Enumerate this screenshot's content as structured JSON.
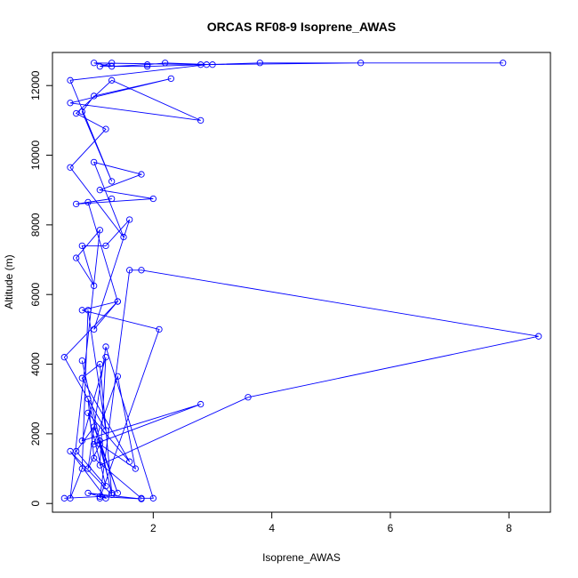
{
  "chart_data": {
    "type": "line",
    "title": "ORCAS RF08-9 Isoprene_AWAS",
    "xlabel": "Isoprene_AWAS",
    "ylabel": "Altitude (m)",
    "xlim": [
      0.3,
      8.7
    ],
    "ylim": [
      -250,
      12950
    ],
    "x_ticks": [
      2,
      4,
      6,
      8
    ],
    "y_ticks": [
      0,
      2000,
      4000,
      6000,
      8000,
      10000,
      12000
    ],
    "grid": false,
    "legend": "none",
    "series_color": "#0000ff",
    "markers": "open-circle",
    "series": [
      {
        "x": [
          0.5,
          1.1,
          1.8,
          0.9,
          1.2,
          0.6,
          1.3,
          0.8,
          1.1,
          1.4,
          1.0,
          0.7,
          1.2,
          0.9,
          1.6,
          0.8,
          1.1,
          1.3,
          0.9,
          1.0,
          1.8,
          2.0,
          1.2,
          0.9,
          1.1,
          1.7,
          1.4,
          1.0,
          2.8,
          0.8,
          1.2,
          1.1,
          3.6,
          8.5,
          1.8,
          1.6,
          1.1,
          2.1,
          0.8,
          1.4,
          0.5,
          1.2,
          0.9,
          0.8,
          0.6,
          1.1,
          0.7,
          1.0,
          0.8,
          1.2,
          1.6,
          1.0,
          1.4,
          0.9,
          1.3,
          0.7,
          2.0,
          1.1,
          1.8,
          1.0,
          1.5,
          0.6,
          1.2,
          0.7,
          1.3,
          2.8,
          0.6,
          2.3,
          1.0,
          0.8,
          1.3,
          0.6,
          2.9,
          1.0,
          1.3,
          1.9,
          2.2,
          3.0,
          2.8,
          5.5,
          7.9,
          3.8,
          1.9,
          1.1,
          1.3
        ],
        "y": [
          150,
          200,
          130,
          300,
          150,
          1500,
          250,
          4100,
          1800,
          300,
          2200,
          1500,
          500,
          2600,
          1200,
          3600,
          4000,
          300,
          3000,
          1300,
          150,
          150,
          4500,
          1000,
          1700,
          1000,
          3650,
          1700,
          2850,
          1800,
          4200,
          1100,
          3050,
          4800,
          6700,
          6700,
          150,
          5000,
          5550,
          5800,
          4200,
          2100,
          5550,
          1000,
          150,
          7850,
          7050,
          6250,
          7400,
          7400,
          8150,
          5000,
          5800,
          8650,
          8750,
          8600,
          8750,
          9000,
          9450,
          9800,
          7650,
          9650,
          10750,
          11200,
          12150,
          11000,
          11500,
          12200,
          11700,
          11250,
          9250,
          12150,
          12600,
          12650,
          12550,
          12600,
          12650,
          12600,
          12600,
          12650,
          12650,
          12650,
          12550,
          12550,
          12650
        ]
      }
    ]
  }
}
